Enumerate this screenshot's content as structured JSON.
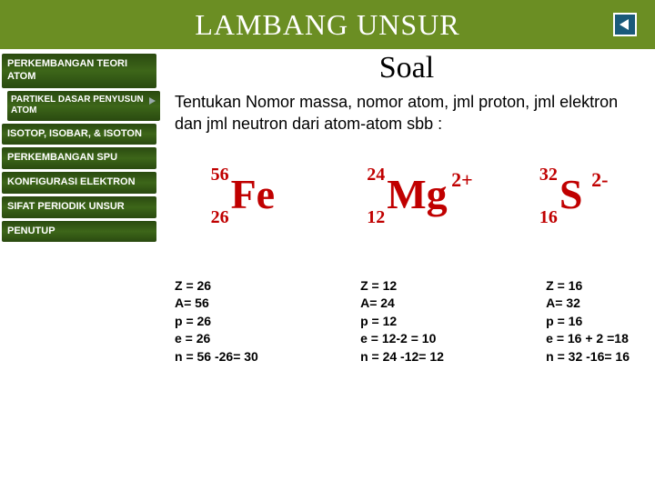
{
  "colors": {
    "header_bg": "#6b8e23",
    "sidebar_item_bg": "linear-gradient(to bottom, #2a4a10 0%, #3d6619 50%, #2a4a10 100%)",
    "accent_red": "#c00000",
    "back_btn_fill": "#1a5a7a"
  },
  "header": {
    "title": "LAMBANG UNSUR"
  },
  "sidebar": {
    "items": [
      {
        "label": "PERKEMBANGAN TEORI ATOM"
      },
      {
        "label": "PARTIKEL DASAR PENYUSUN ATOM",
        "sub": true
      },
      {
        "label": "ISOTOP, ISOBAR, & ISOTON"
      },
      {
        "label": "PERKEMBANGAN SPU"
      },
      {
        "label": "KONFIGURASI ELEKTRON"
      },
      {
        "label": "SIFAT PERIODIK UNSUR"
      },
      {
        "label": "PENUTUP"
      }
    ]
  },
  "content": {
    "title": "Soal",
    "text": "Tentukan Nomor massa, nomor atom, jml proton, jml elektron dan jml neutron dari atom-atom sbb :",
    "elements": [
      {
        "symbol": "Fe",
        "mass": "56",
        "atomic": "26",
        "charge": ""
      },
      {
        "symbol": "Mg",
        "mass": "24",
        "atomic": "12",
        "charge": "2+"
      },
      {
        "symbol": "S",
        "mass": "32",
        "atomic": "16",
        "charge": "2-"
      }
    ],
    "answers": [
      "Z = 26\nA= 56\np = 26\ne = 26\nn = 56 -26= 30",
      "Z = 12\nA= 24\np = 12\ne = 12-2 = 10\nn = 24 -12= 12",
      "Z = 16\nA= 32\np = 16\ne = 16 + 2 =18\nn = 32 -16= 16"
    ]
  }
}
